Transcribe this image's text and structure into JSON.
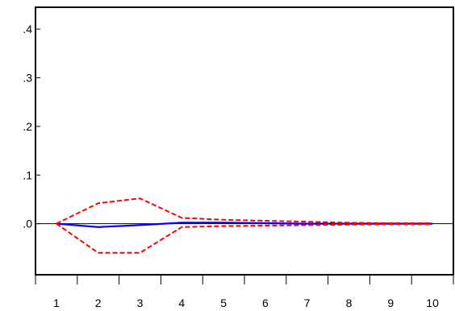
{
  "chart_data": {
    "type": "line",
    "title": "",
    "xlabel": "",
    "ylabel": "",
    "x": [
      1,
      2,
      3,
      4,
      5,
      6,
      7,
      8,
      9,
      10
    ],
    "x_tick_labels": [
      "1",
      "2",
      "3",
      "4",
      "5",
      "6",
      "7",
      "8",
      "9",
      "10"
    ],
    "y_ticks": [
      0.0,
      0.1,
      0.2,
      0.3,
      0.4
    ],
    "y_tick_labels": [
      ".0",
      ".1",
      ".2",
      ".3",
      ".4"
    ],
    "xlim": [
      0.5,
      10.5
    ],
    "ylim": [
      -0.105,
      0.445
    ],
    "grid": false,
    "zero_line": true,
    "series": [
      {
        "role": "response",
        "style": "solid",
        "color": "#0000ff",
        "values": [
          0.0,
          -0.007,
          -0.003,
          0.002,
          0.002,
          0.001,
          0.0,
          0.0,
          0.0,
          0.0
        ]
      },
      {
        "role": "upper-band",
        "style": "dashed",
        "color": "#ff0000",
        "values": [
          0.0,
          0.042,
          0.052,
          0.012,
          0.008,
          0.006,
          0.004,
          0.002,
          0.001,
          0.001
        ]
      },
      {
        "role": "lower-band",
        "style": "dashed",
        "color": "#ff0000",
        "values": [
          0.0,
          -0.06,
          -0.06,
          -0.007,
          -0.005,
          -0.004,
          -0.003,
          -0.002,
          -0.001,
          -0.001
        ]
      }
    ],
    "colors": {
      "axis": "#000000",
      "response": "#0000ff",
      "band": "#ff0000"
    }
  }
}
